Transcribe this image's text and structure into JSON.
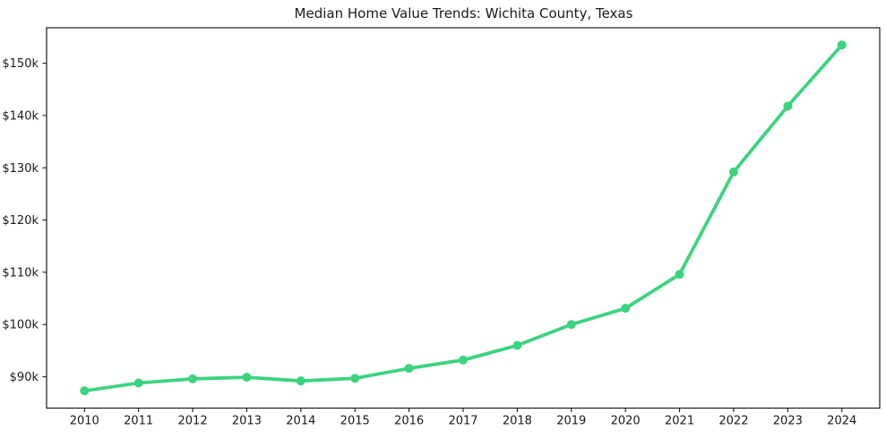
{
  "title": "Median Home Value Trends: Wichita County, Texas",
  "colors": {
    "line": "#3cd37f",
    "marker": "#3cd37f",
    "axis": "#1a1a1a",
    "text": "#1a1a1a",
    "background": "#ffffff"
  },
  "chart_data": {
    "type": "line",
    "title": "Median Home Value Trends: Wichita County, Texas",
    "xlabel": "",
    "ylabel": "",
    "series_name": "Median Home Value",
    "categories": [
      2010,
      2011,
      2012,
      2013,
      2014,
      2015,
      2016,
      2017,
      2018,
      2019,
      2020,
      2021,
      2022,
      2023,
      2024
    ],
    "x_tick_labels": [
      "2010",
      "2011",
      "2012",
      "2013",
      "2014",
      "2015",
      "2016",
      "2017",
      "2018",
      "2019",
      "2020",
      "2021",
      "2022",
      "2023",
      "2024"
    ],
    "values": [
      87300,
      88800,
      89600,
      89900,
      89200,
      89700,
      91600,
      93200,
      96000,
      100000,
      103100,
      109600,
      129200,
      141800,
      153500
    ],
    "y_tick_values": [
      90000,
      100000,
      110000,
      120000,
      130000,
      140000,
      150000
    ],
    "y_tick_labels": [
      "$90k",
      "$100k",
      "$110k",
      "$120k",
      "$130k",
      "$140k",
      "$150k"
    ],
    "xlim": [
      2009.3,
      2024.7
    ],
    "ylim": [
      84000,
      156800
    ],
    "grid": false,
    "legend": "none",
    "line_color": "#3cd37f",
    "marker": "circle"
  }
}
